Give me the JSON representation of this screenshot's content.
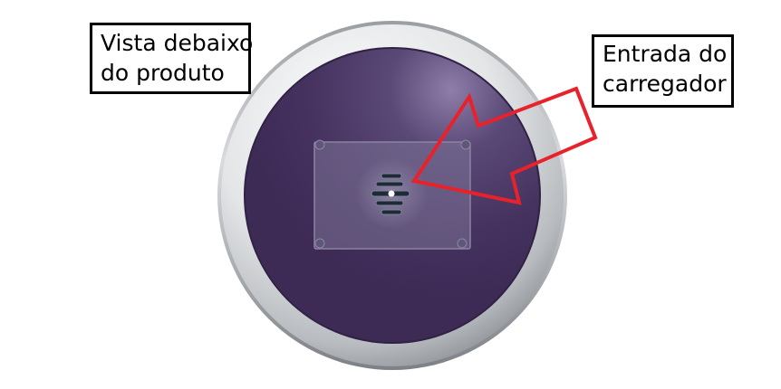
{
  "labels": {
    "bottom_view": {
      "line1": "Vista debaixo",
      "line2": "do produto"
    },
    "charger_port": {
      "line1": "Entrada do",
      "line2": "carregador"
    }
  },
  "colors": {
    "background": "#ffffff",
    "rim_light": "#f4f5f6",
    "rim_dark": "#9ea1a5",
    "face": "#45325f",
    "face_highlight": "#8e7ea8",
    "panel": "#7d7497",
    "arrow": "#e8222b",
    "label_border": "#000000"
  },
  "icons": [
    "screw-icon",
    "charger-port-icon",
    "callout-arrow-icon"
  ]
}
